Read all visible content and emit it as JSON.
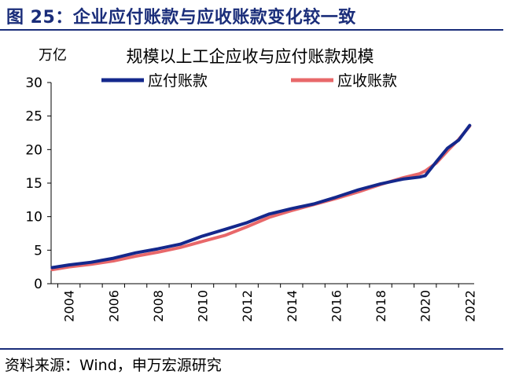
{
  "figure": {
    "title": "图 25：企业应付账款与应收账款变化较一致",
    "source": "资料来源：Wind，申万宏源研究"
  },
  "colors": {
    "accent": "#1a2d7a",
    "payable": "#14288c",
    "receivable": "#e8686a"
  },
  "chart_data": {
    "type": "line",
    "title": "规模以上工企应收与应付账款规模",
    "ylabel": "万亿",
    "xlabel": "",
    "ylim": [
      0,
      30
    ],
    "xlim": [
      2003.7,
      2022.7
    ],
    "yticks": [
      0,
      5,
      10,
      15,
      20,
      25,
      30
    ],
    "xticks": [
      "2004",
      "2006",
      "2008",
      "2010",
      "2012",
      "2014",
      "2016",
      "2018",
      "2020",
      "2022"
    ],
    "grid": false,
    "legend": "top",
    "x": [
      2003.75,
      2004.5,
      2005.5,
      2006.5,
      2007.5,
      2008.5,
      2009.5,
      2010.5,
      2011.5,
      2012.5,
      2013.5,
      2014.5,
      2015.5,
      2016.5,
      2017.5,
      2018.5,
      2019.5,
      2020.25,
      2020.5,
      2021.0,
      2021.5,
      2022.0,
      2022.5
    ],
    "series": [
      {
        "name": "应付账款",
        "values": [
          2.4,
          2.8,
          3.2,
          3.8,
          4.6,
          5.2,
          5.9,
          7.1,
          8.1,
          9.1,
          10.4,
          11.2,
          11.9,
          12.9,
          14.0,
          14.9,
          15.6,
          15.9,
          16.1,
          18.2,
          20.2,
          21.4,
          23.6
        ]
      },
      {
        "name": "应收账款",
        "values": [
          2.1,
          2.5,
          2.9,
          3.4,
          4.1,
          4.7,
          5.4,
          6.3,
          7.2,
          8.5,
          9.9,
          10.9,
          11.8,
          12.7,
          13.7,
          14.8,
          15.8,
          16.4,
          16.8,
          18.0,
          19.8,
          21.5,
          23.5
        ]
      }
    ]
  }
}
